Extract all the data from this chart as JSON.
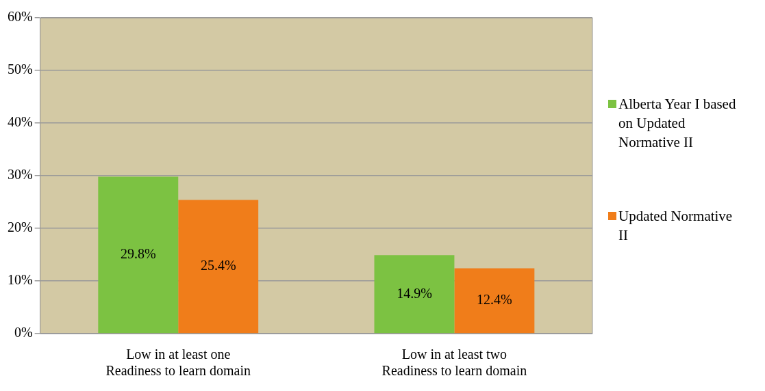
{
  "chart_data": {
    "type": "bar",
    "categories": [
      "Low in at least one\nReadiness to learn domain",
      "Low in at least two\nReadiness to learn domain"
    ],
    "series": [
      {
        "name": "Alberta Year I based on Updated Normative II",
        "color": "#7cc242",
        "values": [
          29.8,
          14.9
        ],
        "value_labels": [
          "29.8%",
          "14.9%"
        ]
      },
      {
        "name": "Updated Normative II",
        "color": "#f07d1a",
        "values": [
          25.4,
          12.4
        ],
        "value_labels": [
          "25.4%",
          "12.4%"
        ]
      }
    ],
    "ylim": [
      0,
      60
    ],
    "yticks": [
      {
        "value": 0,
        "label": "0%"
      },
      {
        "value": 10,
        "label": "10%"
      },
      {
        "value": 20,
        "label": "20%"
      },
      {
        "value": 30,
        "label": "30%"
      },
      {
        "value": 40,
        "label": "40%"
      },
      {
        "value": 50,
        "label": "50%"
      },
      {
        "value": 60,
        "label": "60%"
      }
    ],
    "grid": "y",
    "legend": "right"
  }
}
